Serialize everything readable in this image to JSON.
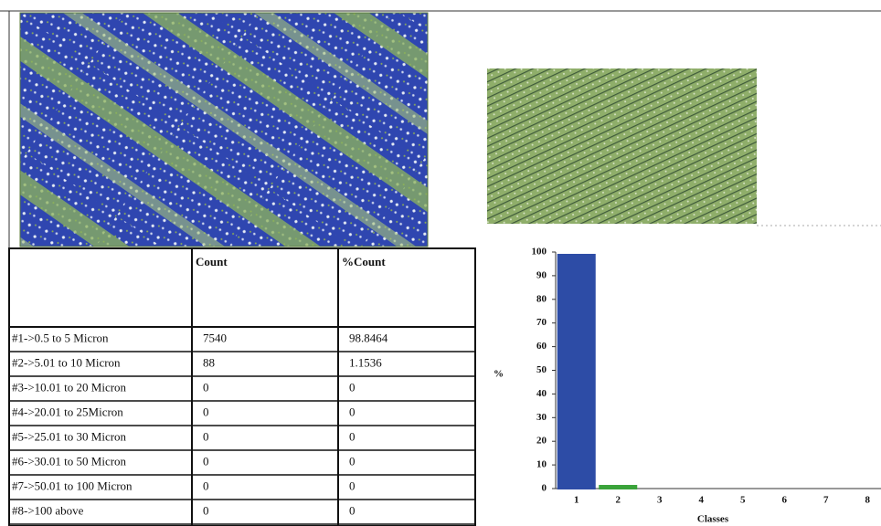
{
  "table": {
    "header": [
      "Count",
      "%Count"
    ],
    "rows": [
      [
        "#1->0.5 to 5 Micron",
        "7540",
        "98.8464"
      ],
      [
        "#2->5.01 to 10 Micron",
        "88",
        "1.1536"
      ],
      [
        "#3->10.01 to 20 Micron",
        "0",
        "0"
      ],
      [
        "#4->20.01 to 25Micron",
        "0",
        "0"
      ],
      [
        "#5->25.01 to 30 Micron",
        "0",
        "0"
      ],
      [
        "#6->30.01 to 50 Micron",
        "0",
        "0"
      ],
      [
        "#7->50.01 to 100 Micron",
        "0",
        "0"
      ],
      [
        "#8->100 above",
        "0",
        "0"
      ]
    ]
  },
  "chart_data": {
    "type": "bar",
    "ylabel": "%",
    "xlabel": "Classes",
    "categories": [
      "1",
      "2",
      "3",
      "4",
      "5",
      "6",
      "7",
      "8"
    ],
    "values": [
      98.8464,
      1.1536,
      0,
      0,
      0,
      0,
      0,
      0
    ],
    "colors": [
      "#2d4ca6",
      "#3aa33a",
      "#d9534f",
      "#e8d44d",
      "#5bc0de",
      "#3c9d8f",
      "#e27fb0",
      "#8a6fc2"
    ],
    "ylim": [
      0,
      100
    ],
    "yticks": [
      0,
      10,
      20,
      30,
      40,
      50,
      60,
      70,
      80,
      90,
      100
    ]
  }
}
